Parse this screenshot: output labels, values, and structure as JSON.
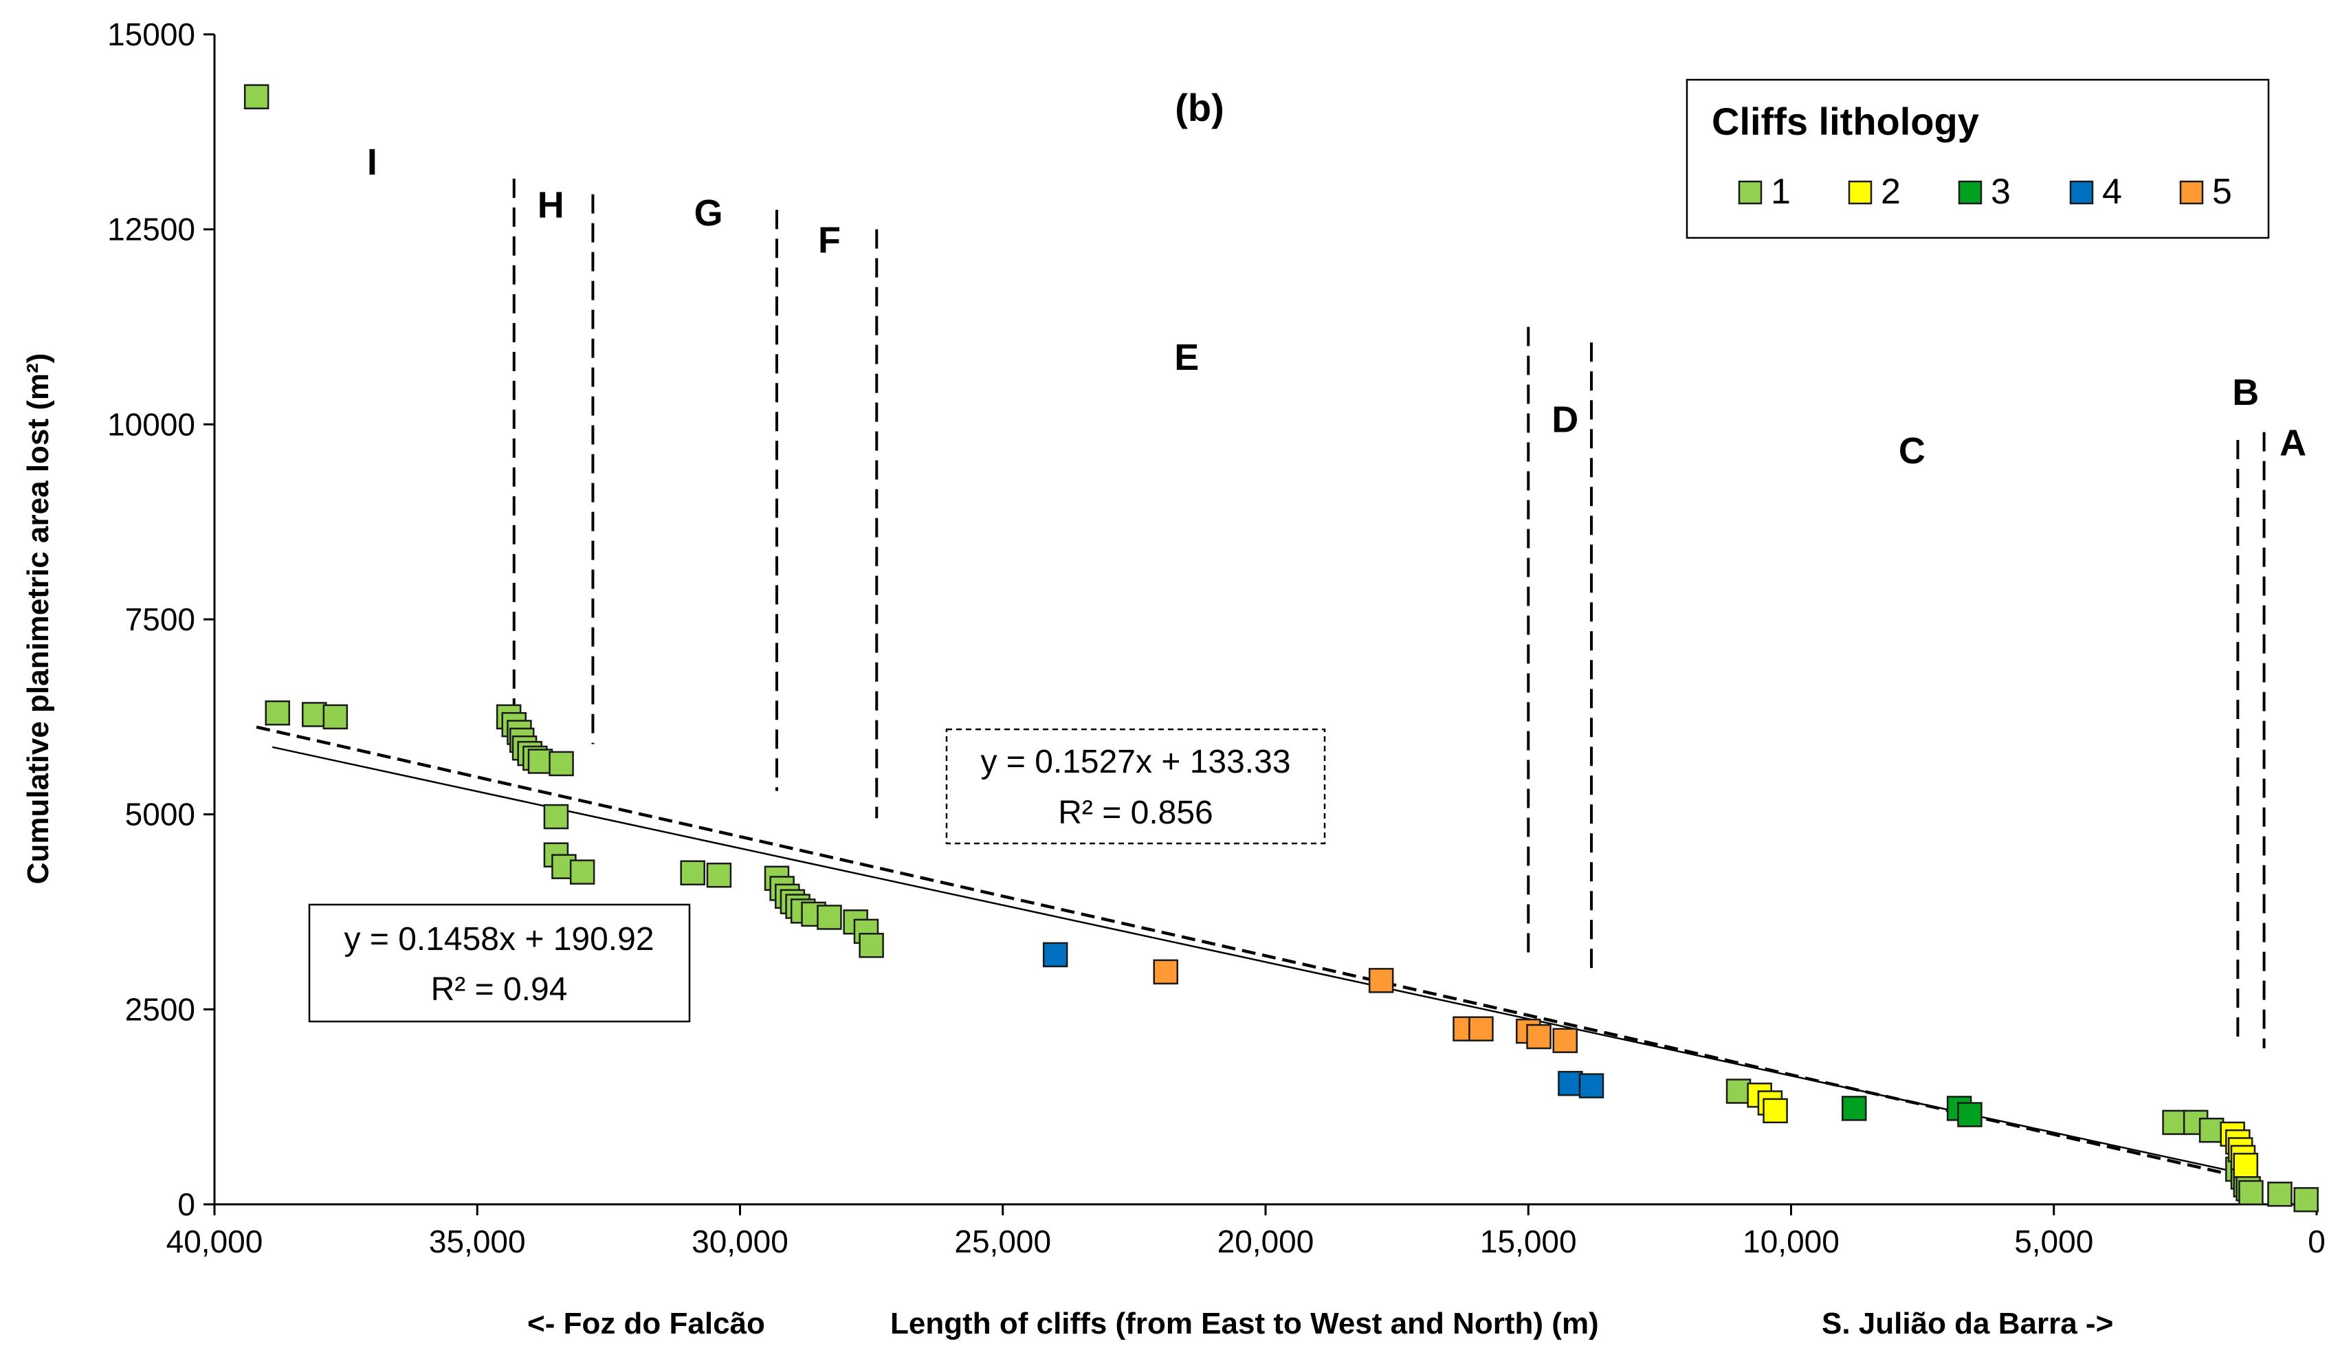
{
  "chart_data": {
    "type": "scatter",
    "panel_label": "(b)",
    "ylabel": "Cumulative planimetric area lost (m²)",
    "xlabel": "Length of cliffs (from East to West and North) (m)",
    "xlabel_left": "<-  Foz do Falcão",
    "xlabel_right": "S. Julião da Barra ->",
    "xlim": [
      40000,
      0
    ],
    "ylim": [
      0,
      15000
    ],
    "x_reversed": true,
    "xticks": [
      40000,
      35000,
      30000,
      25000,
      20000,
      15000,
      10000,
      5000,
      0
    ],
    "xtick_labels": [
      "40,000",
      "35,000",
      "30,000",
      "25,000",
      "20,000",
      "15,000",
      "10,000",
      "5,000",
      "0"
    ],
    "yticks": [
      0,
      2500,
      5000,
      7500,
      10000,
      12500,
      15000
    ],
    "ytick_labels": [
      "0",
      "2500",
      "5000",
      "7500",
      "10000",
      "12500",
      "15000"
    ],
    "legend": {
      "title": "Cliffs lithology",
      "entries": [
        {
          "label": "1",
          "color": "#92D050"
        },
        {
          "label": "2",
          "color": "#FFFF00"
        },
        {
          "label": "3",
          "color": "#00A021"
        },
        {
          "label": "4",
          "color": "#0070C0"
        },
        {
          "label": "5",
          "color": "#FF9933"
        }
      ]
    },
    "regions": [
      {
        "label": "I",
        "x": 37000,
        "y": 13200
      },
      {
        "label": "H",
        "x": 33600,
        "y": 12650
      },
      {
        "label": "G",
        "x": 30600,
        "y": 12550
      },
      {
        "label": "F",
        "x": 28300,
        "y": 12200
      },
      {
        "label": "E",
        "x": 21500,
        "y": 10700
      },
      {
        "label": "D",
        "x": 14300,
        "y": 9900
      },
      {
        "label": "C",
        "x": 7700,
        "y": 9500
      },
      {
        "label": "B",
        "x": 1350,
        "y": 10250
      },
      {
        "label": "A",
        "x": 450,
        "y": 9600
      }
    ],
    "boundaries": [
      {
        "x": 34300,
        "y_from": 6000,
        "y_to": 13150
      },
      {
        "x": 32800,
        "y_from": 5900,
        "y_to": 12950
      },
      {
        "x": 29300,
        "y_from": 5300,
        "y_to": 12750
      },
      {
        "x": 27400,
        "y_from": 4950,
        "y_to": 12500
      },
      {
        "x": 15000,
        "y_from": 3150,
        "y_to": 11250
      },
      {
        "x": 13800,
        "y_from": 2950,
        "y_to": 11050
      },
      {
        "x": 1500,
        "y_from": 2100,
        "y_to": 9800
      },
      {
        "x": 1000,
        "y_from": 2000,
        "y_to": 9900
      }
    ],
    "series": [
      {
        "name": "1",
        "color": "#92D050",
        "points": [
          [
            39200,
            14200
          ],
          [
            38800,
            6300
          ],
          [
            38100,
            6280
          ],
          [
            37700,
            6250
          ],
          [
            34400,
            6250
          ],
          [
            34300,
            6150
          ],
          [
            34200,
            6050
          ],
          [
            34150,
            5950
          ],
          [
            34100,
            5850
          ],
          [
            34000,
            5780
          ],
          [
            33900,
            5720
          ],
          [
            33800,
            5680
          ],
          [
            33400,
            5650
          ],
          [
            33500,
            4970
          ],
          [
            33500,
            4480
          ],
          [
            33350,
            4330
          ],
          [
            33000,
            4260
          ],
          [
            30900,
            4250
          ],
          [
            30400,
            4220
          ],
          [
            29300,
            4180
          ],
          [
            29200,
            4050
          ],
          [
            29100,
            3950
          ],
          [
            29000,
            3880
          ],
          [
            28900,
            3820
          ],
          [
            28800,
            3760
          ],
          [
            28600,
            3720
          ],
          [
            28300,
            3680
          ],
          [
            27800,
            3620
          ],
          [
            27600,
            3500
          ],
          [
            27500,
            3320
          ],
          [
            11000,
            1450
          ],
          [
            2700,
            1050
          ],
          [
            2300,
            1050
          ],
          [
            2000,
            950
          ],
          [
            1500,
            450
          ],
          [
            1400,
            350
          ],
          [
            1350,
            250
          ],
          [
            1300,
            200
          ],
          [
            1250,
            150
          ],
          [
            700,
            130
          ],
          [
            200,
            60
          ]
        ]
      },
      {
        "name": "2",
        "color": "#FFFF00",
        "points": [
          [
            10600,
            1400
          ],
          [
            10400,
            1300
          ],
          [
            10300,
            1200
          ],
          [
            1600,
            900
          ],
          [
            1500,
            800
          ],
          [
            1450,
            700
          ],
          [
            1400,
            600
          ],
          [
            1350,
            500
          ]
        ]
      },
      {
        "name": "3",
        "color": "#00A021",
        "points": [
          [
            8800,
            1230
          ],
          [
            6800,
            1230
          ],
          [
            6600,
            1150
          ]
        ]
      },
      {
        "name": "4",
        "color": "#0070C0",
        "points": [
          [
            24000,
            3200
          ],
          [
            14200,
            1550
          ],
          [
            13800,
            1520
          ]
        ]
      },
      {
        "name": "5",
        "color": "#FF9933",
        "points": [
          [
            21900,
            2980
          ],
          [
            17800,
            2870
          ],
          [
            16200,
            2250
          ],
          [
            15900,
            2250
          ],
          [
            15000,
            2220
          ],
          [
            14800,
            2150
          ],
          [
            14300,
            2100
          ]
        ]
      }
    ],
    "trendlines": [
      {
        "name": "solid",
        "style": "solid",
        "slope": 0.1458,
        "intercept": 190.92,
        "x_from": 38900,
        "x_to": 1600,
        "equation": "y = 0.1458x + 190.92",
        "r2": "R² = 0.94"
      },
      {
        "name": "dashed",
        "style": "dashed",
        "slope": 0.1527,
        "intercept": 133.33,
        "x_from": 39200,
        "x_to": 1200,
        "equation": "y = 0.1527x + 133.33",
        "r2": "R² = 0.856"
      }
    ]
  }
}
